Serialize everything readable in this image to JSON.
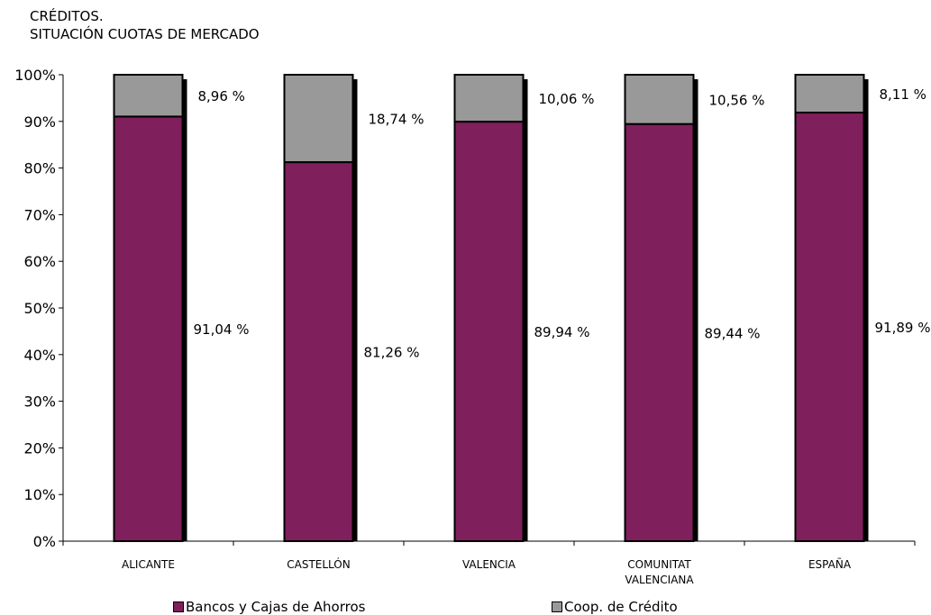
{
  "title_lines": [
    "CRÉDITOS.",
    "SITUACIÓN CUOTAS DE MERCADO"
  ],
  "colors": {
    "bancos": "#7f1f5c",
    "coop": "#999999"
  },
  "chart_data": {
    "type": "bar",
    "stacked": true,
    "percent_stacked": true,
    "title": "CRÉDITOS. SITUACIÓN CUOTAS DE MERCADO",
    "categories": [
      [
        "ALICANTE"
      ],
      [
        "CASTELLÓN"
      ],
      [
        "VALENCIA"
      ],
      [
        "COMUNITAT",
        "VALENCIANA"
      ],
      [
        "ESPAÑA"
      ]
    ],
    "series": [
      {
        "name": "Bancos y Cajas de Ahorros",
        "values": [
          91.04,
          81.26,
          89.94,
          89.44,
          91.89
        ],
        "labels": [
          "91,04 %",
          "81,26 %",
          "89,94 %",
          "89,44 %",
          "91,89 %"
        ]
      },
      {
        "name": "Coop. de Crédito",
        "values": [
          8.96,
          18.74,
          10.06,
          10.56,
          8.11
        ],
        "labels": [
          "8,96 %",
          "18,74 %",
          "10,06 %",
          "10,56 %",
          "8,11 %"
        ]
      }
    ],
    "ylim": [
      0,
      100
    ],
    "yticks": [
      "0%",
      "10%",
      "20%",
      "30%",
      "40%",
      "50%",
      "60%",
      "70%",
      "80%",
      "90%",
      "100%"
    ],
    "grid": false,
    "legend": "bottom"
  },
  "legend": [
    {
      "label": "Bancos y Cajas de Ahorros",
      "color_key": "bancos"
    },
    {
      "label": "Coop. de Crédito",
      "color_key": "coop"
    }
  ]
}
